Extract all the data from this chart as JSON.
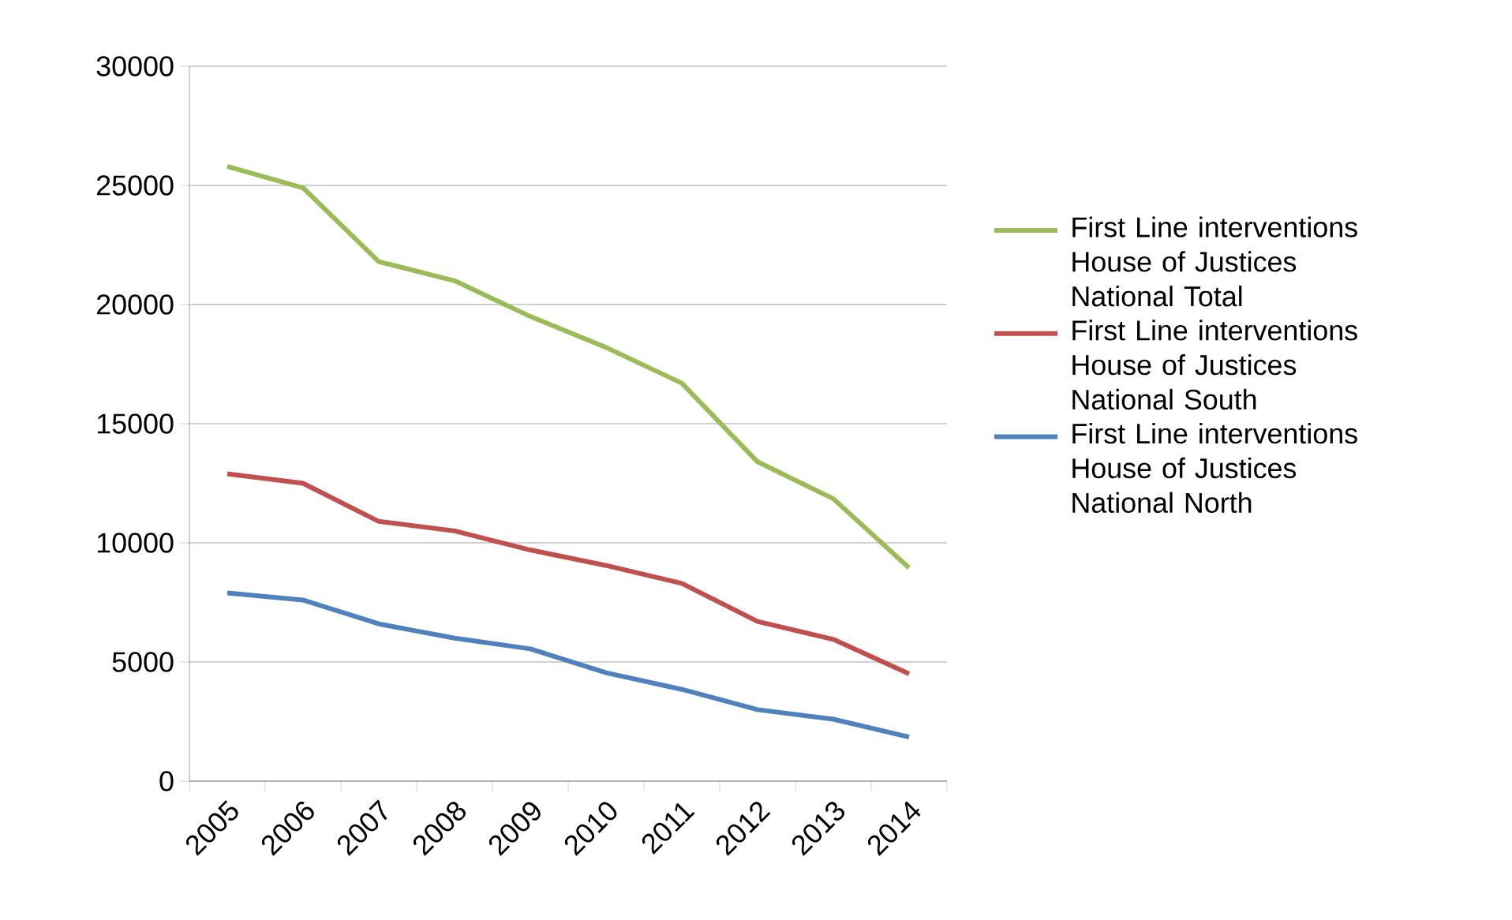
{
  "chart_data": {
    "type": "line",
    "categories": [
      "2005",
      "2006",
      "2007",
      "2008",
      "2009",
      "2010",
      "2011",
      "2012",
      "2013",
      "2014"
    ],
    "series": [
      {
        "name": "First Line interventions House of Justices National Total",
        "color": "#9bbb59",
        "values": [
          25800,
          24900,
          21800,
          21000,
          19500,
          18200,
          16700,
          13400,
          11850,
          8950
        ]
      },
      {
        "name": "First Line interventions House of Justices National South",
        "color": "#c0504d",
        "values": [
          12900,
          12500,
          10900,
          10500,
          9700,
          9050,
          8300,
          6700,
          5950,
          4500
        ]
      },
      {
        "name": "First Line interventions House of Justices National North",
        "color": "#4f81bd",
        "values": [
          7900,
          7600,
          6600,
          6000,
          5550,
          4550,
          3850,
          3000,
          2600,
          1850
        ]
      }
    ],
    "ylim": [
      0,
      30000
    ],
    "yticks": [
      0,
      5000,
      10000,
      15000,
      20000,
      25000,
      30000
    ],
    "grid": "y",
    "legend": "right",
    "marker": "none",
    "line_style": "solid"
  }
}
